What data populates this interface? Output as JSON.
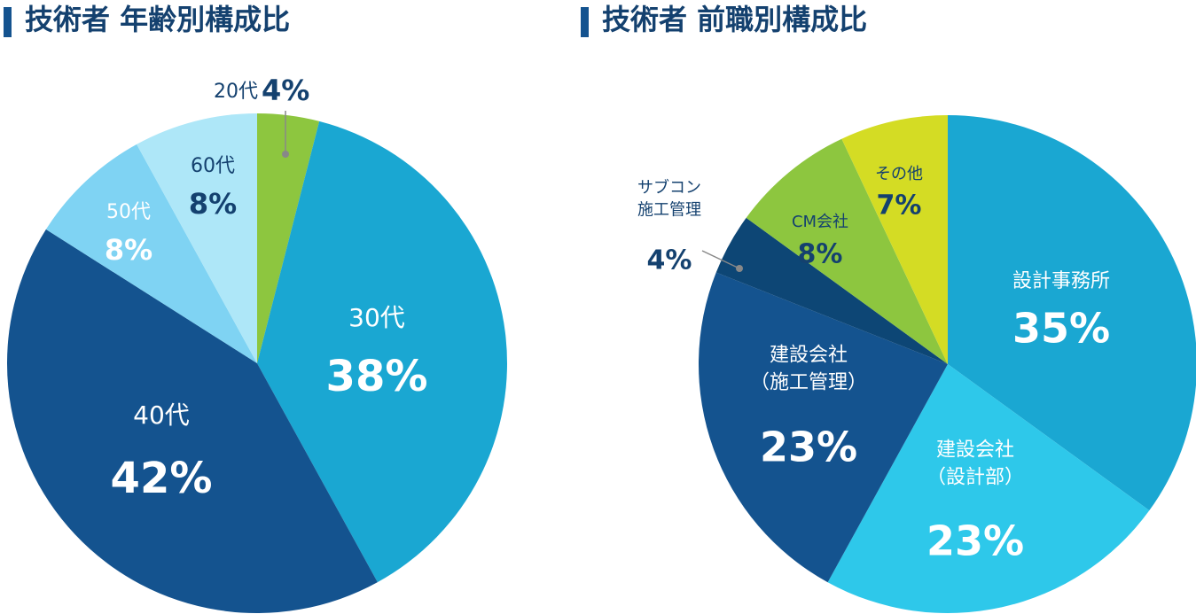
{
  "chart_data": [
    {
      "type": "pie",
      "title": "技術者 年齢別構成比",
      "categories": [
        "20代",
        "30代",
        "40代",
        "50代",
        "60代"
      ],
      "values": [
        4,
        38,
        42,
        8,
        8
      ],
      "value_labels": [
        "4%",
        "38%",
        "42%",
        "8%",
        "8%"
      ],
      "colors": [
        "#8dc63f",
        "#1aa7d2",
        "#14538f",
        "#7fd3f3",
        "#aee7f8"
      ]
    },
    {
      "type": "pie",
      "title": "技術者 前職別構成比",
      "categories": [
        "設計事務所",
        "建設会社\n（設計部）",
        "建設会社\n（施工管理）",
        "サブコン\n施工管理",
        "CM会社",
        "その他"
      ],
      "values": [
        35,
        23,
        23,
        4,
        8,
        7
      ],
      "value_labels": [
        "35%",
        "23%",
        "23%",
        "4%",
        "8%",
        "7%"
      ],
      "colors": [
        "#1aa7d2",
        "#2ec8ea",
        "#14538f",
        "#0d4675",
        "#8dc63f",
        "#d4dc24"
      ]
    }
  ]
}
